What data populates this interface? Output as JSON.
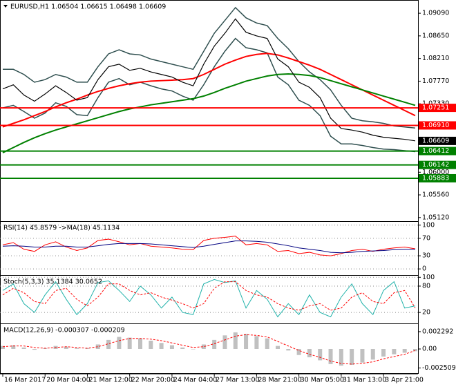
{
  "chart_data": [
    {
      "type": "line",
      "title": "EURUSD,H1 1.06504 1.06615 1.06498 1.06609",
      "categories": [
        "16 Mar 2017",
        null,
        null,
        null,
        "20 Mar 04:00",
        null,
        null,
        null,
        "21 Mar 12:00",
        null,
        null,
        null,
        "22 Mar 20:00",
        null,
        null,
        null,
        "24 Mar 04:00",
        null,
        null,
        null,
        "27 Mar 13:00",
        null,
        null,
        null,
        "28 Mar 21:00",
        null,
        null,
        null,
        "30 Mar 05:00",
        null,
        null,
        null,
        "31 Mar 13:00",
        null,
        null,
        null,
        "3 Apr 21:00",
        null,
        null,
        null
      ],
      "ylim": [
        1.0505,
        1.0932
      ],
      "yticks": [
        {
          "value": 1.0909,
          "label": "1.09090"
        },
        {
          "value": 1.0865,
          "label": "1.08650"
        },
        {
          "value": 1.0821,
          "label": "1.08210"
        },
        {
          "value": 1.0777,
          "label": "1.07770"
        },
        {
          "value": 1.0733,
          "label": "1.07330"
        },
        {
          "value": 1.06,
          "label": "1.06000"
        },
        {
          "value": 1.0556,
          "label": "1.05560"
        },
        {
          "value": 1.0512,
          "label": "1.05120"
        }
      ],
      "series": [
        {
          "color": "#2f4f4f",
          "width": 1.5,
          "values": [
            1.08,
            1.08,
            1.079,
            1.0775,
            1.078,
            1.079,
            1.0785,
            1.0775,
            1.0775,
            1.0805,
            1.083,
            1.0838,
            1.083,
            1.0828,
            1.082,
            1.0815,
            1.081,
            1.0805,
            1.08,
            1.0835,
            1.087,
            1.0895,
            1.092,
            1.09,
            1.089,
            1.0885,
            1.086,
            1.084,
            1.0815,
            1.0795,
            1.078,
            1.076,
            1.073,
            1.0705,
            1.07,
            1.0698,
            1.0695,
            1.069,
            1.0688,
            1.0686
          ]
        },
        {
          "color": "#2f4f4f",
          "width": 1.5,
          "values": [
            1.0725,
            1.073,
            1.0718,
            1.0705,
            1.0715,
            1.0735,
            1.0728,
            1.0712,
            1.071,
            1.0745,
            1.0775,
            1.0782,
            1.077,
            1.0775,
            1.0768,
            1.0762,
            1.0758,
            1.0748,
            1.074,
            1.077,
            1.0805,
            1.0835,
            1.086,
            1.0842,
            1.0838,
            1.0832,
            1.0785,
            1.077,
            1.074,
            1.073,
            1.071,
            1.067,
            1.0655,
            1.0655,
            1.0652,
            1.0648,
            1.0645,
            1.0644,
            1.0642,
            1.064
          ]
        },
        {
          "color": "#ff0000",
          "width": 2,
          "values": [
            1.0688,
            1.0695,
            1.0702,
            1.071,
            1.0718,
            1.0727,
            1.0735,
            1.0742,
            1.075,
            1.0757,
            1.0763,
            1.0768,
            1.0772,
            1.0775,
            1.0777,
            1.0778,
            1.0779,
            1.078,
            1.0782,
            1.079,
            1.08,
            1.081,
            1.0818,
            1.0825,
            1.0829,
            1.0831,
            1.0828,
            1.0822,
            1.0815,
            1.0808,
            1.08,
            1.079,
            1.078,
            1.077,
            1.076,
            1.075,
            1.074,
            1.073,
            1.072,
            1.071
          ]
        },
        {
          "color": "#008000",
          "width": 2,
          "values": [
            1.0638,
            1.0648,
            1.0658,
            1.0667,
            1.0675,
            1.0682,
            1.0688,
            1.0694,
            1.07,
            1.0706,
            1.0712,
            1.0718,
            1.0723,
            1.0727,
            1.0731,
            1.0734,
            1.0737,
            1.074,
            1.0743,
            1.0748,
            1.0755,
            1.0763,
            1.077,
            1.0777,
            1.0782,
            1.0787,
            1.079,
            1.0791,
            1.079,
            1.0788,
            1.0784,
            1.0778,
            1.0772,
            1.0766,
            1.076,
            1.0754,
            1.0748,
            1.0742,
            1.0736,
            1.073
          ]
        },
        {
          "color": "#000000",
          "width": 1.2,
          "values": [
            1.0762,
            1.077,
            1.075,
            1.0738,
            1.0752,
            1.0768,
            1.0755,
            1.074,
            1.0745,
            1.078,
            1.0805,
            1.081,
            1.0798,
            1.0802,
            1.0795,
            1.079,
            1.0785,
            1.0775,
            1.0768,
            1.081,
            1.0845,
            1.087,
            1.0898,
            1.0872,
            1.0865,
            1.086,
            1.082,
            1.0805,
            1.0775,
            1.0765,
            1.0745,
            1.0705,
            1.0685,
            1.0682,
            1.0678,
            1.0672,
            1.0668,
            1.0666,
            1.0664,
            1.0661
          ]
        }
      ],
      "levels": [
        {
          "value": 1.07251,
          "label": "1.07251",
          "color": "#ff0000"
        },
        {
          "value": 1.0691,
          "label": "1.06910",
          "color": "#ff0000"
        },
        {
          "value": 1.06412,
          "label": "1.06412",
          "color": "#008000"
        },
        {
          "value": 1.06142,
          "label": "1.06142",
          "color": "#008000"
        },
        {
          "value": 1.05883,
          "label": "1.05883",
          "color": "#008000"
        }
      ],
      "last_price": {
        "value": 1.06609,
        "label": "1.06609",
        "color": "#000000"
      }
    },
    {
      "type": "line",
      "title": "RSI(14) 45.8579 ->MA(18) 45.1134",
      "ylim": [
        -14,
        106
      ],
      "yticks": [
        100,
        70,
        30,
        0
      ],
      "grid": true,
      "series": [
        {
          "color": "#ff0000",
          "width": 1,
          "values": [
            55,
            60,
            45,
            40,
            55,
            62,
            50,
            42,
            48,
            65,
            68,
            62,
            55,
            58,
            52,
            50,
            48,
            45,
            44,
            65,
            70,
            72,
            75,
            55,
            58,
            55,
            40,
            42,
            35,
            38,
            32,
            30,
            35,
            42,
            45,
            40,
            45,
            48,
            50,
            46
          ]
        },
        {
          "color": "#000080",
          "width": 1,
          "values": [
            52,
            53,
            52,
            50,
            50,
            52,
            52,
            50,
            50,
            53,
            56,
            58,
            58,
            58,
            57,
            55,
            53,
            51,
            49,
            52,
            56,
            60,
            64,
            64,
            63,
            61,
            57,
            53,
            48,
            45,
            42,
            38,
            37,
            38,
            40,
            41,
            42,
            44,
            45,
            45
          ]
        }
      ]
    },
    {
      "type": "line",
      "title": "Stoch(5,3,3) 35.1384 30.0652",
      "ylim": [
        -5,
        102
      ],
      "yticks": [
        100,
        80,
        20
      ],
      "grid": true,
      "series": [
        {
          "color": "#20b2aa",
          "width": 1,
          "values": [
            70,
            85,
            40,
            20,
            60,
            90,
            50,
            15,
            40,
            88,
            92,
            70,
            45,
            80,
            60,
            30,
            55,
            20,
            15,
            85,
            95,
            88,
            92,
            30,
            70,
            50,
            10,
            40,
            15,
            60,
            20,
            10,
            55,
            85,
            40,
            15,
            70,
            90,
            30,
            35
          ]
        },
        {
          "color": "#ff0000",
          "width": 1,
          "dash": true,
          "values": [
            60,
            75,
            65,
            45,
            40,
            70,
            75,
            50,
            35,
            55,
            85,
            85,
            70,
            60,
            65,
            55,
            48,
            40,
            30,
            40,
            75,
            90,
            90,
            70,
            60,
            55,
            40,
            30,
            25,
            35,
            40,
            25,
            30,
            55,
            65,
            45,
            40,
            65,
            70,
            30
          ]
        }
      ]
    },
    {
      "type": "bar",
      "title": "MACD(12,26,9) -0.000307 -0.000209",
      "ylim": [
        -0.0032,
        0.0032
      ],
      "yticks": [
        0.002292,
        {
          "value": 0,
          "label": "0.00"
        },
        -0.002509
      ],
      "series": [
        {
          "color": "#c0c0c0",
          "kind": "bar",
          "values": [
            0.0004,
            0.0005,
            0.0002,
            -0.0001,
            0.0001,
            0.0004,
            0.0003,
            0.0001,
            0.0001,
            0.0006,
            0.0012,
            0.0016,
            0.0015,
            0.0014,
            0.0011,
            0.0008,
            0.0005,
            0.0002,
            0,
            0.0006,
            0.0012,
            0.0018,
            0.0022,
            0.002,
            0.0017,
            0.0014,
            0.0004,
            -0.0002,
            -0.0008,
            -0.0011,
            -0.0015,
            -0.002,
            -0.0022,
            -0.0021,
            -0.0018,
            -0.0014,
            -0.001,
            -0.0007,
            -0.0005,
            -0.0003
          ]
        },
        {
          "color": "#ff0000",
          "width": 1,
          "dash": true,
          "values": [
            0.0003,
            0.0004,
            0.0004,
            0.0002,
            0.0001,
            0.0002,
            0.0003,
            0.0002,
            0.0001,
            0.0003,
            0.0007,
            0.0011,
            0.0014,
            0.0014,
            0.0013,
            0.0011,
            0.0008,
            0.0005,
            0.0002,
            0.0003,
            0.0007,
            0.0012,
            0.0017,
            0.0019,
            0.0018,
            0.0016,
            0.001,
            0.0004,
            -0.0002,
            -0.0007,
            -0.0011,
            -0.0016,
            -0.0019,
            -0.002,
            -0.0019,
            -0.0017,
            -0.0013,
            -0.001,
            -0.0007,
            -0.0002
          ]
        }
      ]
    }
  ]
}
